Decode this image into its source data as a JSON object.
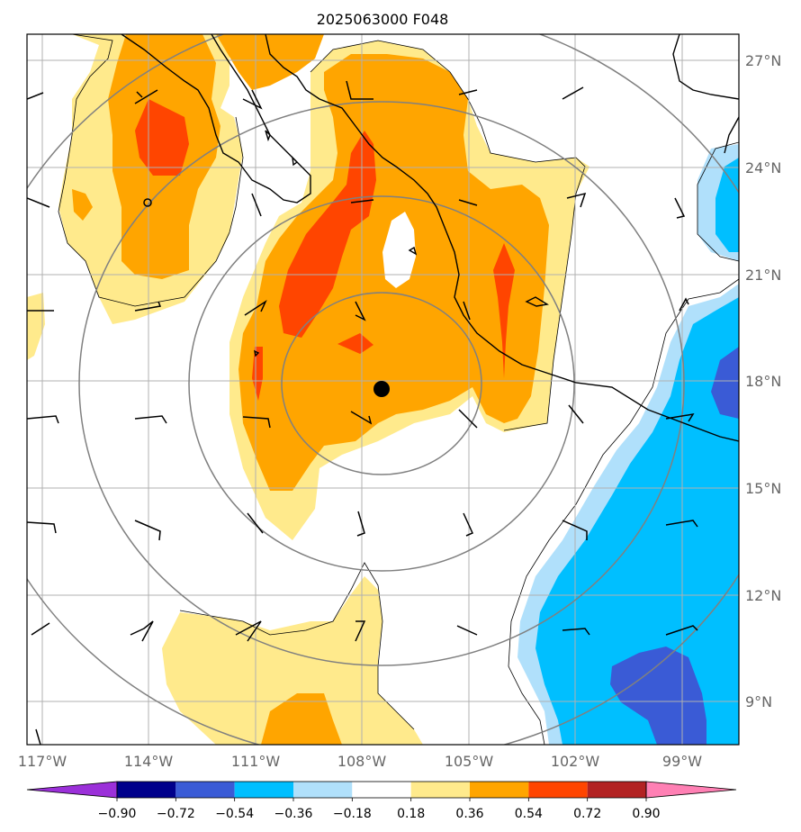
{
  "title": "2025063000 F048",
  "map": {
    "lat_ticks": [
      "27°N",
      "24°N",
      "21°N",
      "18°N",
      "15°N",
      "12°N",
      "9°N"
    ],
    "lon_ticks": [
      "117°W",
      "114°W",
      "111°W",
      "108°W",
      "105°W",
      "102°W",
      "99°W"
    ],
    "center_marker": {
      "lon": -107.5,
      "lat": 17.7
    },
    "extent": {
      "lon_min": -117.4,
      "lon_max": -97.9,
      "lat_min": 7.9,
      "lat_max": 27.7
    },
    "range_rings_deg": [
      3,
      5,
      8
    ],
    "shading": "filled contours of a field between -0.90 and 0.90",
    "overlay": "wind barbs, coastlines and range rings"
  },
  "colorbar": {
    "levels": [
      "−0.90",
      "−0.72",
      "−0.54",
      "−0.36",
      "−0.18",
      "0.18",
      "0.36",
      "0.54",
      "0.72",
      "0.90"
    ],
    "colors": [
      "#9b30d9",
      "#00008b",
      "#3a5bd6",
      "#00bfff",
      "#b0e0fb",
      "#ffffff",
      "#ffea8c",
      "#ffa500",
      "#ff4500",
      "#b22222",
      "#ff80b4"
    ]
  },
  "colors": {
    "grid": "#b0b0b0",
    "ring": "#808080",
    "coast": "#000000",
    "tick_text": "#666666"
  }
}
